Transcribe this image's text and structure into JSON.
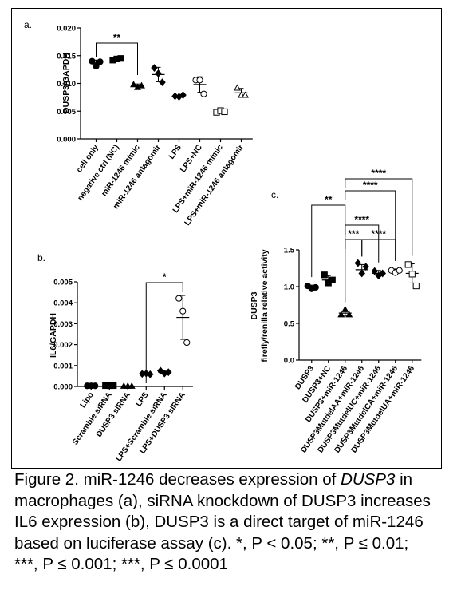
{
  "chart_data": [
    {
      "type": "scatter",
      "panel_label": "a.",
      "ylabel": "DUSP3/GAPDH",
      "ylim": [
        0,
        0.02
      ],
      "yticks": [
        "0.000",
        "0.005",
        "0.010",
        "0.015",
        "0.020"
      ],
      "categories": [
        "cell only",
        "negative ctrl (NC)",
        "miR-1246 mimic",
        "miR-1246 antagomir",
        "LPS",
        "LPS+NC",
        "LPS+miR-1246 mimic",
        "LPS+miR-1246 antagomir"
      ],
      "markers": [
        "circle-filled",
        "square-filled",
        "triangle-filled",
        "diamond-filled",
        "diamond-filled",
        "circle-open",
        "square-open",
        "triangle-open"
      ],
      "points": [
        [
          0.014,
          0.0131,
          0.0139
        ],
        [
          0.0142,
          0.0144,
          0.0145
        ],
        [
          0.0098,
          0.0093,
          0.0096
        ],
        [
          0.0128,
          0.0118,
          0.0102
        ],
        [
          0.0077,
          0.0076,
          0.0079
        ],
        [
          0.0106,
          0.0106,
          0.0081
        ],
        [
          0.0048,
          0.0051,
          0.0049
        ],
        [
          0.0092,
          0.0079,
          0.0079
        ]
      ],
      "means": [
        0.0137,
        0.0144,
        0.0096,
        0.0116,
        0.0077,
        0.0098,
        0.0049,
        0.0083
      ],
      "errors": [
        0.0005,
        0.0002,
        0.0003,
        0.0013,
        0.0002,
        0.0014,
        0.0002,
        0.0008
      ],
      "significance": [
        {
          "from": 0,
          "to": 2,
          "label": "**"
        }
      ]
    },
    {
      "type": "scatter",
      "panel_label": "b.",
      "ylabel": "IL6/GAPDH",
      "ylim": [
        0,
        0.005
      ],
      "yticks": [
        "0.000",
        "0.001",
        "0.002",
        "0.003",
        "0.004",
        "0.005"
      ],
      "categories": [
        "Lipo",
        "Scramble siRNA",
        "DUSP3 siRNA",
        "LPS",
        "LPS+Scramble siRNA",
        "LPS+DUSP3 siRNA"
      ],
      "markers": [
        "circle-filled",
        "square-filled",
        "triangle-filled",
        "diamond-filled",
        "diamond-filled",
        "circle-open"
      ],
      "points": [
        [
          3e-05,
          3e-05,
          3e-05
        ],
        [
          4e-05,
          4e-05,
          4e-05
        ],
        [
          2e-05,
          2e-05,
          2e-05
        ],
        [
          0.0006,
          0.00062,
          0.00058
        ],
        [
          0.00075,
          0.00062,
          0.00068
        ],
        [
          0.00421,
          0.0036,
          0.0021
        ]
      ],
      "means": [
        3e-05,
        4e-05,
        2e-05,
        0.0006,
        0.00068,
        0.0033
      ],
      "errors": [
        1e-05,
        1e-05,
        1e-05,
        3e-05,
        5e-05,
        0.00105
      ],
      "significance": [
        {
          "from": 3,
          "to": 5,
          "label": "*"
        }
      ]
    },
    {
      "type": "scatter",
      "panel_label": "c.",
      "ylabel_line1": "DUSP3",
      "ylabel_line2": "firefly/renilla relative activity",
      "ylim": [
        0,
        1.5
      ],
      "yticks": [
        "0.0",
        "0.5",
        "1.0",
        "1.5"
      ],
      "categories": [
        "DUSP3",
        "DUSP3+NC",
        "DUSP3+miR-1246",
        "DUSP3MutdelAA+miR-1246",
        "DUSP3MutdelUC+miR-1246",
        "DUSP3MutdelCA+miR-1246",
        "DUSP3MutdelUA+miR-1246"
      ],
      "markers": [
        "circle-filled",
        "square-filled",
        "triangle-filled",
        "diamond-filled",
        "diamond-filled",
        "circle-open",
        "square-open"
      ],
      "points": [
        [
          1.01,
          0.97,
          0.99
        ],
        [
          1.16,
          1.05,
          1.09
        ],
        [
          0.62,
          0.69,
          0.62
        ],
        [
          1.32,
          1.18,
          1.27
        ],
        [
          1.21,
          1.15,
          1.18
        ],
        [
          1.22,
          1.19,
          1.22
        ],
        [
          1.3,
          1.17,
          1.01
        ]
      ],
      "means": [
        0.99,
        1.09,
        0.64,
        1.23,
        1.18,
        1.21,
        1.18
      ],
      "errors": [
        0.03,
        0.06,
        0.04,
        0.07,
        0.04,
        0.03,
        0.13
      ],
      "significance": [
        {
          "from": 0,
          "to": 2,
          "label": "**"
        },
        {
          "from": 2,
          "to": 6,
          "label": "****"
        },
        {
          "from": 2,
          "to": 5,
          "label": "****"
        },
        {
          "from": 2,
          "to": 4,
          "label": "****"
        },
        {
          "from": 2,
          "to": 3,
          "label": "***"
        },
        {
          "from": 3,
          "to": 5,
          "label": "****"
        }
      ]
    }
  ],
  "caption": {
    "line1_pre": "Figure 2. miR-1246 decreases expression of ",
    "line1_italic": "DUSP3",
    "line1_post": " in",
    "line2": "macrophages (a), siRNA knockdown of DUSP3 increases",
    "line3": "IL6 expression (b), DUSP3 is a direct target of miR-1246",
    "line4": "based on luciferase assay (c). *, P < 0.05; **, P ≤ 0.01;",
    "line5": "***, P ≤ 0.001; ***,  P ≤ 0.0001"
  }
}
